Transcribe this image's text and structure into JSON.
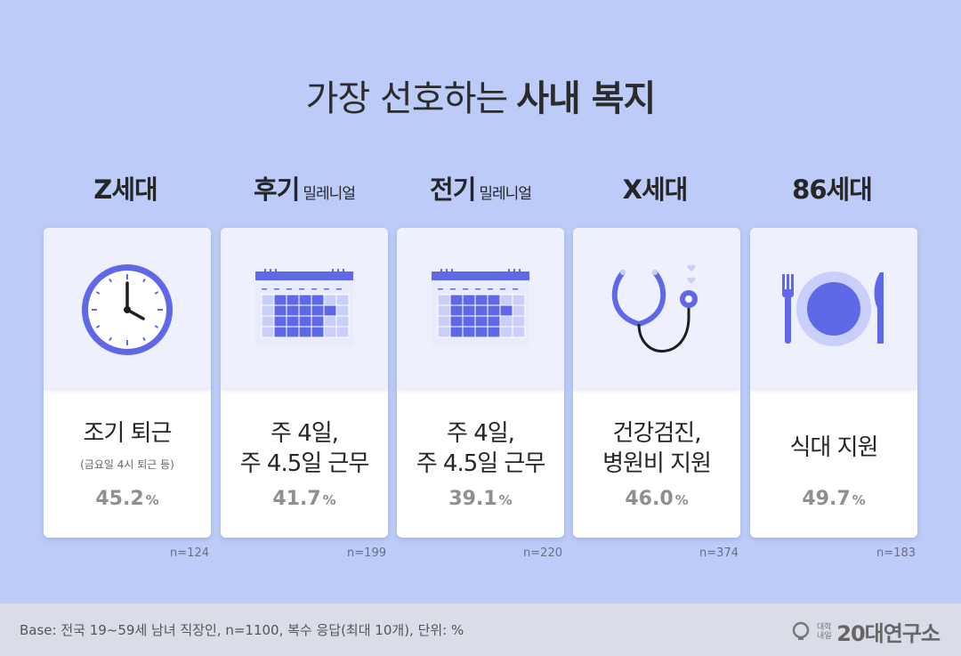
{
  "title": {
    "regular": "가장 선호하는",
    "bold": "사내 복지"
  },
  "chart_data": {
    "type": "table",
    "title": "가장 선호하는 사내 복지",
    "unit": "%",
    "groups": [
      {
        "generation": "Z세대",
        "generation_sub": "",
        "icon": "clock-icon",
        "benefit_lines": [
          "조기 퇴근"
        ],
        "note": "(금요일 4시 퇴근 등)",
        "value": 45.2,
        "value_text": "45.2",
        "n": "n=124"
      },
      {
        "generation": "후기",
        "generation_sub": "밀레니얼",
        "icon": "calendar-icon",
        "benefit_lines": [
          "주 4일,",
          "주 4.5일 근무"
        ],
        "note": "",
        "value": 41.7,
        "value_text": "41.7",
        "n": "n=199"
      },
      {
        "generation": "전기",
        "generation_sub": "밀레니얼",
        "icon": "calendar-icon",
        "benefit_lines": [
          "주 4일,",
          "주 4.5일 근무"
        ],
        "note": "",
        "value": 39.1,
        "value_text": "39.1",
        "n": "n=220"
      },
      {
        "generation": "X세대",
        "generation_sub": "",
        "icon": "stethoscope-icon",
        "benefit_lines": [
          "건강검진,",
          "병원비 지원"
        ],
        "note": "",
        "value": 46.0,
        "value_text": "46.0",
        "n": "n=374"
      },
      {
        "generation": "86세대",
        "generation_sub": "",
        "icon": "meal-icon",
        "benefit_lines": [
          "식대 지원"
        ],
        "note": "",
        "value": 49.7,
        "value_text": "49.7",
        "n": "n=183"
      }
    ]
  },
  "footer": {
    "base": "Base: 전국 19~59세 남녀 직장인, n=1100, 복수 응답(최대 10개), 단위: %",
    "logo_small": "대학내일",
    "logo_main": "20대연구소"
  },
  "colors": {
    "background": "#bccbf7",
    "accent": "#5f68e6",
    "accent_light": "#c9cffa",
    "card_top": "#eef1fd",
    "footer": "#dadde8"
  }
}
